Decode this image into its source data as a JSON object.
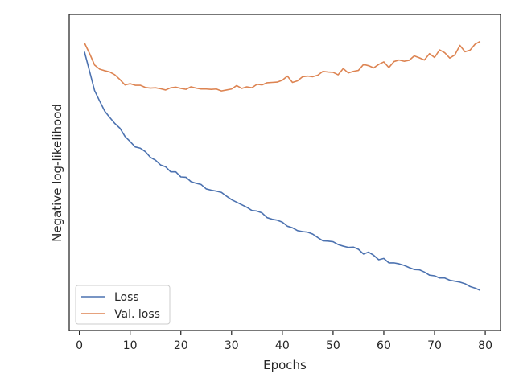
{
  "chart_data": {
    "type": "line",
    "xlabel": "Epochs",
    "ylabel": "Negative log-likelihood",
    "xlim": [
      -2.0,
      83.0
    ],
    "ylim": [
      0.0,
      1.0
    ],
    "xticks": [
      0,
      10,
      20,
      30,
      40,
      50,
      60,
      70,
      80
    ],
    "yticks_shown": false,
    "grid": false,
    "legend_position": "lower-left",
    "x": [
      1,
      2,
      3,
      4,
      5,
      6,
      7,
      8,
      9,
      10,
      11,
      12,
      13,
      14,
      15,
      16,
      17,
      18,
      19,
      20,
      21,
      22,
      23,
      24,
      25,
      26,
      27,
      28,
      29,
      30,
      31,
      32,
      33,
      34,
      35,
      36,
      37,
      38,
      39,
      40,
      41,
      42,
      43,
      44,
      45,
      46,
      47,
      48,
      49,
      50,
      51,
      52,
      53,
      54,
      55,
      56,
      57,
      58,
      59,
      60,
      61,
      62,
      63,
      64,
      65,
      66,
      67,
      68,
      69,
      70,
      71,
      72,
      73,
      74,
      75,
      76,
      77,
      78,
      79
    ],
    "series": [
      {
        "name": "Loss",
        "color": "#4c72b0",
        "values": [
          0.882,
          0.821,
          0.759,
          0.726,
          0.694,
          0.674,
          0.655,
          0.64,
          0.614,
          0.598,
          0.581,
          0.577,
          0.566,
          0.548,
          0.539,
          0.524,
          0.518,
          0.502,
          0.502,
          0.486,
          0.485,
          0.471,
          0.466,
          0.462,
          0.448,
          0.444,
          0.441,
          0.437,
          0.425,
          0.414,
          0.406,
          0.398,
          0.39,
          0.38,
          0.378,
          0.372,
          0.357,
          0.352,
          0.349,
          0.343,
          0.33,
          0.325,
          0.316,
          0.313,
          0.311,
          0.305,
          0.294,
          0.284,
          0.283,
          0.281,
          0.272,
          0.267,
          0.263,
          0.264,
          0.257,
          0.242,
          0.248,
          0.238,
          0.224,
          0.228,
          0.214,
          0.214,
          0.211,
          0.206,
          0.199,
          0.193,
          0.192,
          0.185,
          0.175,
          0.173,
          0.166,
          0.166,
          0.159,
          0.156,
          0.153,
          0.148,
          0.139,
          0.134,
          0.127
        ]
      },
      {
        "name": "Val. loss",
        "color": "#dd8452",
        "values": [
          0.91,
          0.877,
          0.84,
          0.827,
          0.822,
          0.818,
          0.809,
          0.794,
          0.777,
          0.781,
          0.776,
          0.776,
          0.769,
          0.767,
          0.768,
          0.765,
          0.761,
          0.768,
          0.77,
          0.766,
          0.763,
          0.771,
          0.767,
          0.764,
          0.764,
          0.763,
          0.764,
          0.758,
          0.761,
          0.764,
          0.775,
          0.766,
          0.771,
          0.768,
          0.779,
          0.777,
          0.784,
          0.785,
          0.786,
          0.792,
          0.805,
          0.785,
          0.79,
          0.803,
          0.805,
          0.803,
          0.808,
          0.82,
          0.818,
          0.817,
          0.809,
          0.829,
          0.815,
          0.82,
          0.823,
          0.842,
          0.838,
          0.831,
          0.842,
          0.85,
          0.832,
          0.851,
          0.856,
          0.852,
          0.855,
          0.869,
          0.863,
          0.856,
          0.876,
          0.864,
          0.888,
          0.879,
          0.862,
          0.872,
          0.902,
          0.882,
          0.887,
          0.906,
          0.915
        ]
      }
    ]
  }
}
